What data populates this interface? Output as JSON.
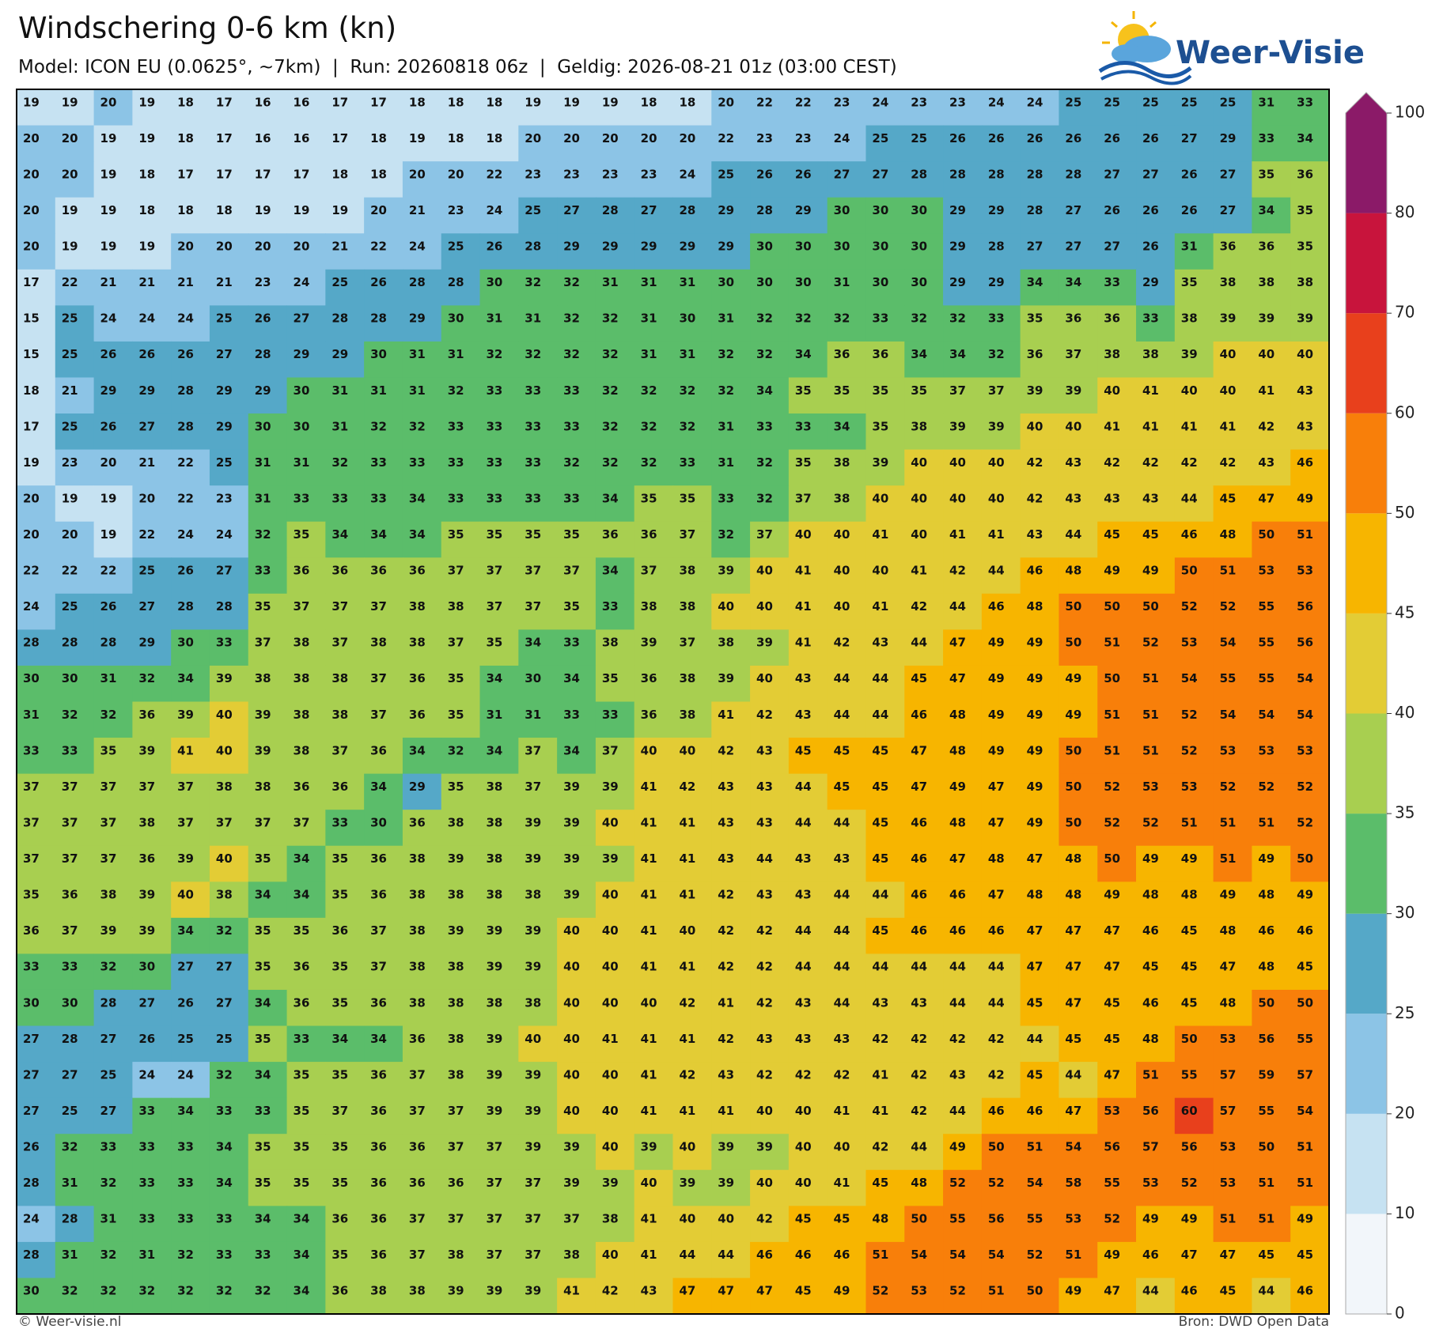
{
  "header": {
    "title": "Windschering 0-6 km (kn)",
    "subtitle": "Model: ICON EU (0.0625°, ~7km)  |  Run: 20260818 06z  |  Geldig: 2026-08-21 01z (03:00 CEST)",
    "logo": "Weer-Visie"
  },
  "map": {
    "values": [
      [
        19,
        19,
        20,
        19,
        18,
        17,
        16,
        16,
        17,
        17,
        18,
        18,
        18,
        19,
        19,
        19,
        18,
        18,
        20,
        22,
        22,
        23,
        24,
        23,
        23,
        24,
        24,
        25,
        25,
        25,
        25,
        25,
        31,
        33
      ],
      [
        20,
        20,
        19,
        19,
        18,
        17,
        16,
        16,
        17,
        18,
        19,
        18,
        18,
        20,
        20,
        20,
        20,
        20,
        22,
        23,
        23,
        24,
        25,
        25,
        26,
        26,
        26,
        26,
        26,
        26,
        27,
        29,
        33,
        34
      ],
      [
        20,
        20,
        19,
        18,
        17,
        17,
        17,
        17,
        18,
        18,
        20,
        20,
        22,
        23,
        23,
        23,
        23,
        24,
        25,
        26,
        26,
        27,
        27,
        28,
        28,
        28,
        28,
        28,
        27,
        27,
        26,
        27,
        35,
        36
      ],
      [
        20,
        19,
        19,
        18,
        18,
        18,
        19,
        19,
        19,
        20,
        21,
        23,
        24,
        25,
        27,
        28,
        27,
        28,
        29,
        28,
        29,
        30,
        30,
        30,
        29,
        29,
        28,
        27,
        26,
        26,
        26,
        27,
        34,
        35
      ],
      [
        20,
        19,
        19,
        19,
        20,
        20,
        20,
        20,
        21,
        22,
        24,
        25,
        26,
        28,
        29,
        29,
        29,
        29,
        29,
        30,
        30,
        30,
        30,
        30,
        29,
        28,
        27,
        27,
        27,
        26,
        31,
        36,
        36,
        35
      ],
      [
        17,
        22,
        21,
        21,
        21,
        21,
        23,
        24,
        25,
        26,
        28,
        28,
        30,
        32,
        32,
        31,
        31,
        31,
        30,
        30,
        30,
        31,
        30,
        30,
        29,
        29,
        34,
        34,
        33,
        29,
        35,
        38,
        38,
        38
      ],
      [
        15,
        25,
        24,
        24,
        24,
        25,
        26,
        27,
        28,
        28,
        29,
        30,
        31,
        31,
        32,
        32,
        31,
        30,
        31,
        32,
        32,
        32,
        33,
        32,
        32,
        33,
        35,
        36,
        36,
        33,
        38,
        39,
        39,
        39
      ],
      [
        15,
        25,
        26,
        26,
        26,
        27,
        28,
        29,
        29,
        30,
        31,
        31,
        32,
        32,
        32,
        32,
        31,
        31,
        32,
        32,
        34,
        36,
        36,
        34,
        34,
        32,
        36,
        37,
        38,
        38,
        39,
        40,
        40,
        40
      ],
      [
        18,
        21,
        29,
        29,
        28,
        29,
        29,
        30,
        31,
        31,
        31,
        32,
        33,
        33,
        33,
        32,
        32,
        32,
        32,
        34,
        35,
        35,
        35,
        35,
        37,
        37,
        39,
        39,
        40,
        41,
        40,
        40,
        41,
        43
      ],
      [
        17,
        25,
        26,
        27,
        28,
        29,
        30,
        30,
        31,
        32,
        32,
        33,
        33,
        33,
        33,
        32,
        32,
        32,
        31,
        33,
        33,
        34,
        35,
        38,
        39,
        39,
        40,
        40,
        41,
        41,
        41,
        41,
        42,
        43
      ],
      [
        19,
        23,
        20,
        21,
        22,
        25,
        31,
        31,
        32,
        33,
        33,
        33,
        33,
        33,
        32,
        32,
        32,
        33,
        31,
        32,
        35,
        38,
        39,
        40,
        40,
        40,
        42,
        43,
        42,
        42,
        42,
        42,
        43,
        46
      ],
      [
        20,
        19,
        19,
        20,
        22,
        23,
        31,
        33,
        33,
        33,
        34,
        33,
        33,
        33,
        33,
        34,
        35,
        35,
        33,
        32,
        37,
        38,
        40,
        40,
        40,
        40,
        42,
        43,
        43,
        43,
        44,
        45,
        47,
        49
      ],
      [
        20,
        20,
        19,
        22,
        24,
        24,
        32,
        35,
        34,
        34,
        34,
        35,
        35,
        35,
        35,
        36,
        36,
        37,
        32,
        37,
        40,
        40,
        41,
        40,
        41,
        41,
        43,
        44,
        45,
        45,
        46,
        48,
        50,
        51
      ],
      [
        22,
        22,
        22,
        25,
        26,
        27,
        33,
        36,
        36,
        36,
        36,
        37,
        37,
        37,
        37,
        34,
        37,
        38,
        39,
        40,
        41,
        40,
        40,
        41,
        42,
        44,
        46,
        48,
        49,
        49,
        50,
        51,
        53,
        53
      ],
      [
        24,
        25,
        26,
        27,
        28,
        28,
        35,
        37,
        37,
        37,
        38,
        38,
        37,
        37,
        35,
        33,
        38,
        38,
        40,
        40,
        41,
        40,
        41,
        42,
        44,
        46,
        48,
        50,
        50,
        50,
        52,
        52,
        55,
        56
      ],
      [
        28,
        28,
        28,
        29,
        30,
        33,
        37,
        38,
        37,
        38,
        38,
        37,
        35,
        34,
        33,
        38,
        39,
        37,
        38,
        39,
        41,
        42,
        43,
        44,
        47,
        49,
        49,
        50,
        51,
        52,
        53,
        54,
        55,
        56
      ],
      [
        30,
        30,
        31,
        32,
        34,
        39,
        38,
        38,
        38,
        37,
        36,
        35,
        34,
        30,
        34,
        35,
        36,
        38,
        39,
        40,
        43,
        44,
        44,
        45,
        47,
        49,
        49,
        49,
        50,
        51,
        54,
        55,
        55,
        54
      ],
      [
        31,
        32,
        32,
        36,
        39,
        40,
        39,
        38,
        38,
        37,
        36,
        35,
        31,
        31,
        33,
        33,
        36,
        38,
        41,
        42,
        43,
        44,
        44,
        46,
        48,
        49,
        49,
        49,
        51,
        51,
        52,
        54,
        54,
        54
      ],
      [
        33,
        33,
        35,
        39,
        41,
        40,
        39,
        38,
        37,
        36,
        34,
        32,
        34,
        37,
        34,
        37,
        40,
        40,
        42,
        43,
        45,
        45,
        45,
        47,
        48,
        49,
        49,
        50,
        51,
        51,
        52,
        53,
        53,
        53
      ],
      [
        37,
        37,
        37,
        37,
        37,
        38,
        38,
        36,
        36,
        34,
        29,
        35,
        38,
        37,
        39,
        39,
        41,
        42,
        43,
        43,
        44,
        45,
        45,
        47,
        49,
        47,
        49,
        50,
        52,
        53,
        53,
        52,
        52,
        52
      ],
      [
        37,
        37,
        37,
        38,
        37,
        37,
        37,
        37,
        33,
        30,
        36,
        38,
        38,
        39,
        39,
        40,
        41,
        41,
        43,
        43,
        44,
        44,
        45,
        46,
        48,
        47,
        49,
        50,
        52,
        52,
        51,
        51,
        51,
        52
      ],
      [
        37,
        37,
        37,
        36,
        39,
        40,
        35,
        34,
        35,
        36,
        38,
        39,
        38,
        39,
        39,
        39,
        41,
        41,
        43,
        44,
        43,
        43,
        45,
        46,
        47,
        48,
        47,
        48,
        50,
        49,
        49,
        51,
        49,
        50
      ],
      [
        35,
        36,
        38,
        39,
        40,
        38,
        34,
        34,
        35,
        36,
        38,
        38,
        38,
        38,
        39,
        40,
        41,
        41,
        42,
        43,
        43,
        44,
        44,
        46,
        46,
        47,
        48,
        48,
        49,
        48,
        48,
        49,
        48,
        49
      ],
      [
        36,
        37,
        39,
        39,
        34,
        32,
        35,
        35,
        36,
        37,
        38,
        39,
        39,
        39,
        40,
        40,
        41,
        40,
        42,
        42,
        44,
        44,
        45,
        46,
        46,
        46,
        47,
        47,
        47,
        46,
        45,
        48,
        46,
        46
      ],
      [
        33,
        33,
        32,
        30,
        27,
        27,
        35,
        36,
        35,
        37,
        38,
        38,
        39,
        39,
        40,
        40,
        41,
        41,
        42,
        42,
        44,
        44,
        44,
        44,
        44,
        44,
        47,
        47,
        47,
        45,
        45,
        47,
        48,
        45
      ],
      [
        30,
        30,
        28,
        27,
        26,
        27,
        34,
        36,
        35,
        36,
        38,
        38,
        38,
        38,
        40,
        40,
        40,
        42,
        41,
        42,
        43,
        44,
        43,
        43,
        44,
        44,
        45,
        47,
        45,
        46,
        45,
        48,
        50,
        50
      ],
      [
        27,
        28,
        27,
        26,
        25,
        25,
        35,
        33,
        34,
        34,
        36,
        38,
        39,
        40,
        40,
        41,
        41,
        41,
        42,
        43,
        43,
        43,
        42,
        42,
        42,
        42,
        44,
        45,
        45,
        48,
        50,
        53,
        56,
        55
      ],
      [
        27,
        27,
        25,
        24,
        24,
        32,
        34,
        35,
        35,
        36,
        37,
        38,
        39,
        39,
        40,
        40,
        41,
        42,
        43,
        42,
        42,
        42,
        41,
        42,
        43,
        42,
        45,
        44,
        47,
        51,
        55,
        57,
        59,
        57
      ],
      [
        27,
        25,
        27,
        33,
        34,
        33,
        33,
        35,
        37,
        36,
        37,
        37,
        39,
        39,
        40,
        40,
        41,
        41,
        41,
        40,
        40,
        41,
        41,
        42,
        44,
        46,
        46,
        47,
        53,
        56,
        60,
        57,
        55,
        54
      ],
      [
        26,
        32,
        33,
        33,
        33,
        34,
        35,
        35,
        35,
        36,
        36,
        37,
        37,
        39,
        39,
        40,
        39,
        40,
        39,
        39,
        40,
        40,
        42,
        44,
        49,
        50,
        51,
        54,
        56,
        57,
        56,
        53,
        50,
        51
      ],
      [
        28,
        31,
        32,
        33,
        33,
        34,
        35,
        35,
        35,
        36,
        36,
        36,
        37,
        37,
        39,
        39,
        40,
        39,
        39,
        40,
        40,
        41,
        45,
        48,
        52,
        52,
        54,
        58,
        55,
        53,
        52,
        53,
        51,
        51
      ],
      [
        24,
        28,
        31,
        33,
        33,
        33,
        34,
        34,
        36,
        36,
        37,
        37,
        37,
        37,
        37,
        38,
        41,
        40,
        40,
        42,
        45,
        45,
        48,
        50,
        55,
        56,
        55,
        53,
        52,
        49,
        49,
        51,
        51,
        49
      ],
      [
        28,
        31,
        32,
        31,
        32,
        33,
        33,
        34,
        35,
        36,
        37,
        38,
        37,
        37,
        38,
        40,
        41,
        44,
        44,
        46,
        46,
        46,
        51,
        54,
        54,
        54,
        52,
        51,
        49,
        46,
        47,
        47,
        45,
        45
      ],
      [
        30,
        32,
        32,
        32,
        32,
        32,
        32,
        34,
        36,
        38,
        38,
        39,
        39,
        39,
        41,
        42,
        43,
        47,
        47,
        47,
        45,
        49,
        52,
        53,
        52,
        51,
        50,
        49,
        47,
        44,
        46,
        45,
        44,
        46
      ]
    ]
  },
  "colorbar": {
    "ticks": [
      0,
      10,
      20,
      25,
      30,
      35,
      40,
      45,
      50,
      60,
      70,
      80,
      100
    ],
    "colors": [
      "#f2f6fa",
      "#c6e2f2",
      "#8cc4e6",
      "#55a8c8",
      "#5bbd6a",
      "#a8cf50",
      "#e3cc35",
      "#f7b500",
      "#f87f0a",
      "#e8401c",
      "#c8143c",
      "#8b1a68"
    ]
  },
  "footer": {
    "left": "© Weer-visie.nl",
    "right": "Bron: DWD Open Data"
  }
}
